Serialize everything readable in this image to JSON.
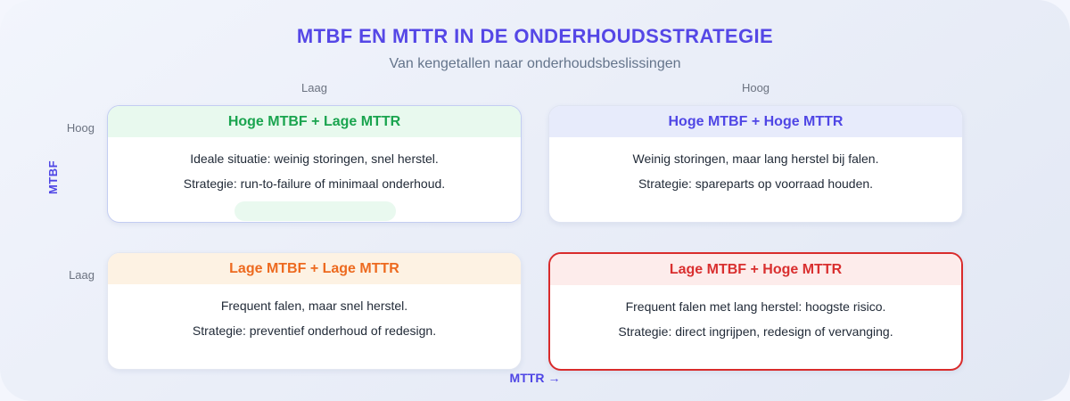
{
  "header": {
    "title": "MTBF EN MTTR IN DE ONDERHOUDSSTRATEGIE",
    "subtitle": "Van kengetallen naar onderhoudsbeslissingen"
  },
  "matrix": {
    "x_axis": {
      "label": "MTTR",
      "arrow": "→",
      "low": "Laag",
      "high": "Hoog"
    },
    "y_axis": {
      "label": "MTBF",
      "high": "Hoog",
      "low": "Laag"
    }
  },
  "quadrants": [
    {
      "title": "Hoge MTBF + Lage MTTR",
      "situation": "Ideale situatie: weinig storingen, snel herstel.",
      "strategy": "Strategie: run-to-failure of minimaal onderhoud.",
      "accent_color": "#1aa44f",
      "header_bg": "#e8f9ee",
      "highlighted": true
    },
    {
      "title": "Hoge MTBF + Hoge MTTR",
      "situation": "Weinig storingen, maar lang herstel bij falen.",
      "strategy": "Strategie: spareparts op voorraad houden.",
      "accent_color": "#4f46e5",
      "header_bg": "#e7ebfb",
      "highlighted": false
    },
    {
      "title": "Lage MTBF + Lage MTTR",
      "situation": "Frequent falen, maar snel herstel.",
      "strategy": "Strategie: preventief onderhoud of redesign.",
      "accent_color": "#ed6a1f",
      "header_bg": "#fdf2e3",
      "highlighted": false
    },
    {
      "title": "Lage MTBF + Hoge MTTR",
      "situation": "Frequent falen met lang herstel: hoogste risico.",
      "strategy": "Strategie: direct ingrijpen, redesign of vervanging.",
      "accent_color": "#d92f2f",
      "header_bg": "#fdeceb",
      "highlighted": false
    }
  ],
  "colors": {
    "title": "#5547e6",
    "axis_label": "#4f46e5",
    "muted_label": "#6b7280",
    "body_text": "#222b38",
    "danger_border": "#d92b2b",
    "highlight_pill": "#e9f9ef"
  }
}
